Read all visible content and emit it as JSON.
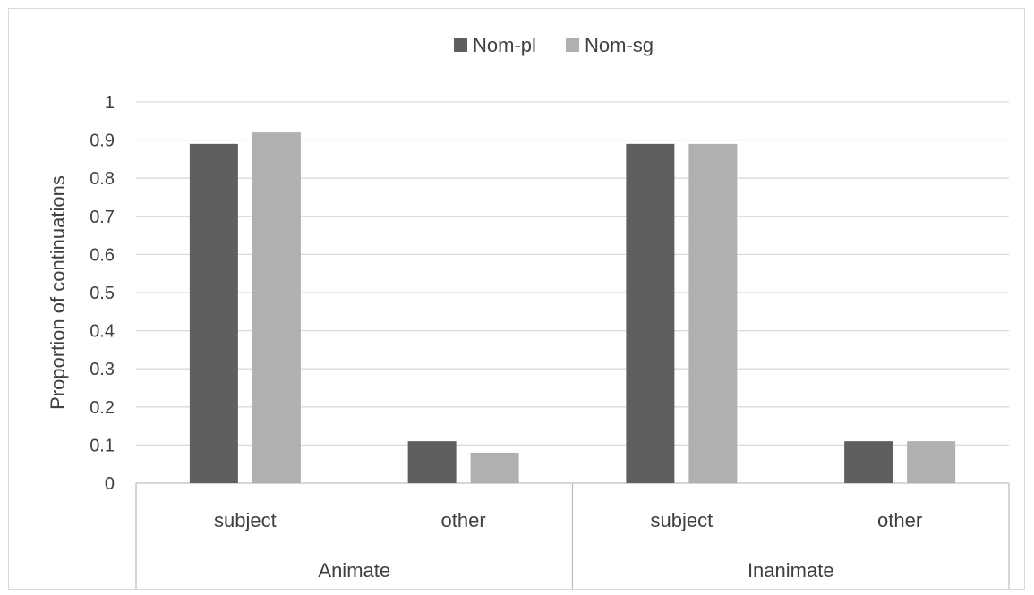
{
  "chart_data": {
    "type": "bar",
    "title": "",
    "ylabel": "Proportion of continuations",
    "xlabel": "",
    "ylim": [
      0,
      1
    ],
    "yticks": [
      "0",
      "0.1",
      "0.2",
      "0.3",
      "0.4",
      "0.5",
      "0.6",
      "0.7",
      "0.8",
      "0.9",
      "1"
    ],
    "groups": [
      {
        "label": "Animate",
        "categories": [
          "subject",
          "other"
        ]
      },
      {
        "label": "Inanimate",
        "categories": [
          "subject",
          "other"
        ]
      }
    ],
    "series": [
      {
        "name": "Nom-pl",
        "color": "#5f5f5f",
        "values": [
          0.89,
          0.11,
          0.89,
          0.11
        ]
      },
      {
        "name": "Nom-sg",
        "color": "#b0b0b0",
        "values": [
          0.92,
          0.08,
          0.89,
          0.11
        ]
      }
    ],
    "grid": true,
    "legend": "top-center"
  }
}
